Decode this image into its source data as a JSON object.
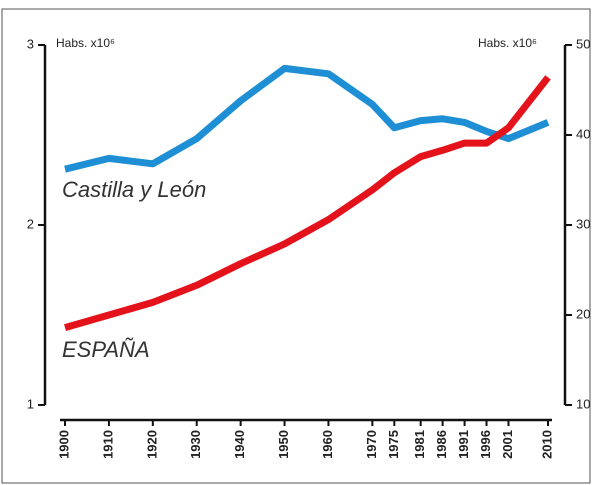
{
  "chart_data": {
    "type": "line",
    "y_label": "Habs. x10⁶",
    "y2_label": "Habs. x10⁶",
    "x": [
      1900,
      1910,
      1920,
      1930,
      1940,
      1950,
      1960,
      1970,
      1975,
      1981,
      1986,
      1991,
      1996,
      2001,
      2010
    ],
    "xlim": [
      1900,
      2010
    ],
    "xticks": [
      1900,
      1910,
      1920,
      1930,
      1940,
      1950,
      1960,
      1970,
      1975,
      1981,
      1986,
      1991,
      1996,
      2001,
      2010
    ],
    "ylim": [
      1,
      3
    ],
    "yticks": [
      1,
      2,
      3
    ],
    "y2lim": [
      10,
      50
    ],
    "y2ticks": [
      10,
      20,
      30,
      40,
      50
    ],
    "series": [
      {
        "name": "Castilla y León",
        "color": "#1e8fd5",
        "values": [
          2.31,
          2.37,
          2.34,
          2.48,
          2.69,
          2.87,
          2.84,
          2.67,
          2.54,
          2.58,
          2.59,
          2.57,
          2.52,
          2.48,
          2.57
        ]
      },
      {
        "name": "ESPAÑA",
        "color": "#e3121b",
        "axis": "y2",
        "values": [
          18.6,
          20.0,
          21.4,
          23.3,
          25.7,
          27.9,
          30.6,
          33.9,
          35.8,
          37.6,
          38.3,
          39.1,
          39.1,
          40.8,
          46.4
        ]
      }
    ]
  }
}
